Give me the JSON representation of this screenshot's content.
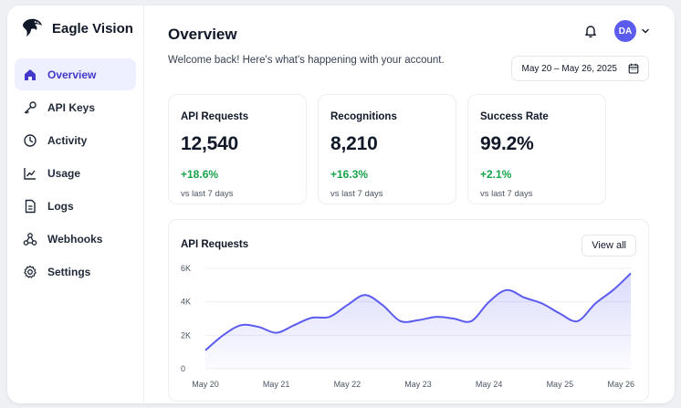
{
  "brand": {
    "name": "Eagle Vision",
    "logo_icon": "eagle-icon"
  },
  "sidebar": {
    "items": [
      {
        "label": "Overview",
        "icon": "home-icon",
        "active": true
      },
      {
        "label": "API Keys",
        "icon": "key-icon",
        "active": false
      },
      {
        "label": "Activity",
        "icon": "clock-icon",
        "active": false
      },
      {
        "label": "Usage",
        "icon": "chart-icon",
        "active": false
      },
      {
        "label": "Logs",
        "icon": "document-icon",
        "active": false
      },
      {
        "label": "Webhooks",
        "icon": "webhook-icon",
        "active": false
      },
      {
        "label": "Settings",
        "icon": "gear-icon",
        "active": false
      }
    ]
  },
  "header": {
    "title": "Overview",
    "subtitle": "Welcome back! Here's what's happening with your account.",
    "avatar_initials": "DA",
    "date_range": "May 20 – May 26, 2025"
  },
  "stats": [
    {
      "label": "API Requests",
      "value": "12,540",
      "delta": "+18.6%",
      "period": "vs last 7 days"
    },
    {
      "label": "Recognitions",
      "value": "8,210",
      "delta": "+16.3%",
      "period": "vs last 7 days"
    },
    {
      "label": "Success Rate",
      "value": "99.2%",
      "delta": "+2.1%",
      "period": "vs last 7 days"
    }
  ],
  "chart_section": {
    "title": "API Requests",
    "view_all_label": "View all"
  },
  "colors": {
    "accent": "#4f46e5",
    "active_bg": "#eef0ff",
    "positive": "#16a34a",
    "line": "#5b5bf0"
  },
  "chart_data": {
    "type": "area",
    "x": [
      "May 20",
      "May 20",
      "May 20",
      "May 20",
      "May 21",
      "May 21",
      "May 21",
      "May 21",
      "May 22",
      "May 22",
      "May 22",
      "May 22",
      "May 23",
      "May 23",
      "May 23",
      "May 23",
      "May 24",
      "May 24",
      "May 24",
      "May 24",
      "May 25",
      "May 25",
      "May 25",
      "May 25",
      "May 26"
    ],
    "series": [
      {
        "values": [
          1100,
          2000,
          2600,
          2500,
          2150,
          2600,
          3050,
          3100,
          3800,
          4400,
          3800,
          2850,
          2900,
          3100,
          3000,
          2850,
          4000,
          4700,
          4250,
          3900,
          3300,
          2850,
          3900,
          4700,
          5700
        ]
      }
    ],
    "x_tick_labels": [
      "May 20",
      "May 21",
      "May 22",
      "May 23",
      "May 24",
      "May 25",
      "May 26"
    ],
    "y_tick_labels": [
      "0",
      "2K",
      "4K",
      "6K"
    ],
    "ylim": [
      0,
      6000
    ],
    "grid": true
  }
}
